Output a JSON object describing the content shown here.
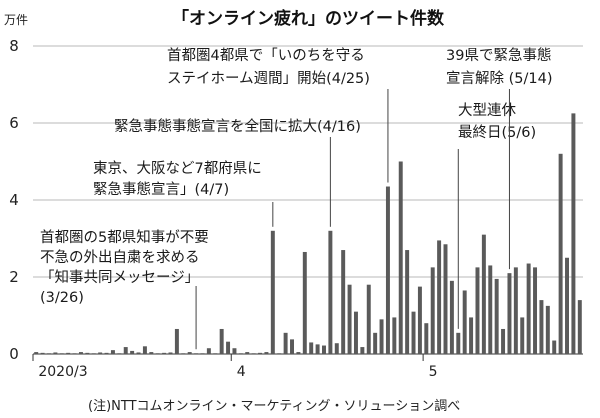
{
  "chart_data": {
    "type": "bar",
    "title": "「オンライン疲れ」のツイート件数",
    "unit_label": "万件",
    "ylim": [
      0,
      8
    ],
    "yticks": [
      "0",
      "2",
      "4",
      "6",
      "8"
    ],
    "grid": true,
    "x_tick_labels": [
      {
        "label": "2020/3",
        "bar_index": 0
      },
      {
        "label": "4",
        "bar_index": 31
      },
      {
        "label": "5",
        "bar_index": 61
      }
    ],
    "values": [
      0.05,
      0.03,
      0.02,
      0.04,
      0.02,
      0.03,
      0.02,
      0.05,
      0.03,
      0.02,
      0.04,
      0.03,
      0.1,
      0.02,
      0.18,
      0.08,
      0.04,
      0.2,
      0.05,
      0.02,
      0.03,
      0.04,
      0.65,
      0.02,
      0.05,
      0.02,
      0.02,
      0.15,
      0.02,
      0.65,
      0.32,
      0.15,
      0.02,
      0.05,
      0.02,
      0.03,
      0.05,
      3.2,
      0.02,
      0.55,
      0.38,
      0.05,
      2.65,
      0.3,
      0.25,
      0.22,
      3.2,
      0.28,
      2.7,
      1.8,
      1.1,
      0.18,
      1.8,
      0.55,
      0.9,
      4.35,
      0.95,
      5.0,
      2.7,
      1.1,
      1.75,
      0.8,
      2.25,
      2.95,
      2.85,
      1.9,
      0.55,
      1.65,
      0.95,
      2.25,
      3.1,
      2.3,
      1.95,
      0.65,
      2.1,
      2.25,
      0.95,
      2.35,
      2.25,
      1.4,
      1.25,
      0.35,
      5.2,
      2.5,
      6.25,
      1.4
    ],
    "annotations": [
      {
        "lines": [
          "首都圏の5都県知事が不要",
          "不急の外出自粛を求める",
          "「知事共同メッセージ」",
          "(3/26)"
        ],
        "bar_index": 25
      },
      {
        "lines": [
          "東京、大阪など7都府県に",
          "緊急事態宣言」(4/7)"
        ],
        "bar_index": 37
      },
      {
        "lines": [
          "緊急事態事態宣言を全国に拡大(4/16)"
        ],
        "bar_index": 46
      },
      {
        "lines": [
          "首都圏4都県で「いのちを守る",
          "ステイホーム週間」開始(4/25)"
        ],
        "bar_index": 55
      },
      {
        "lines": [
          "大型連休",
          "最終日(5/6)"
        ],
        "bar_index": 66
      },
      {
        "lines": [
          "39県で緊急事態",
          "宣言解除 (5/14)"
        ],
        "bar_index": 74
      }
    ]
  },
  "footnote": "(注)NTTコムオンライン・マーケティング・ソリューション調べ"
}
